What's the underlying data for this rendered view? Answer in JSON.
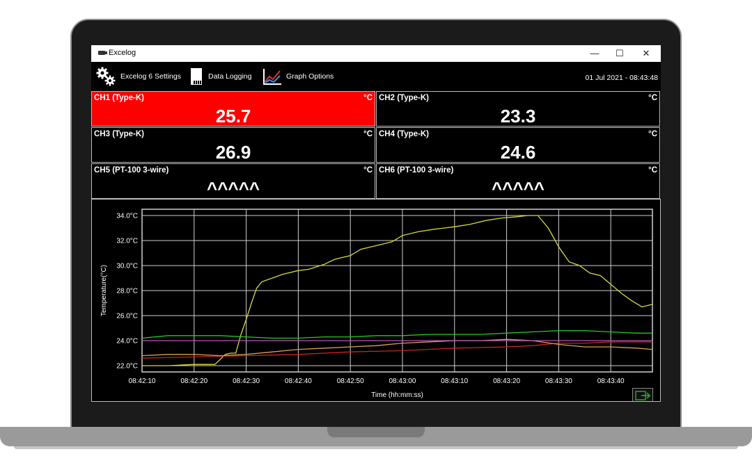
{
  "window": {
    "title": "Excelog",
    "controls": {
      "minimize": "—",
      "maximize": "☐",
      "close": "✕"
    }
  },
  "toolbar": {
    "settings_label": "Excelog 6 Settings",
    "logging_label": "Data Logging",
    "graph_label": "Graph Options",
    "datetime": "01 Jul 2021 - 08:43:48"
  },
  "icons": {
    "settings": "gears-icon",
    "logging": "sd-card-icon",
    "graph": "line-graph-icon"
  },
  "channels": [
    {
      "name": "CH1 (Type-K)",
      "unit": "°C",
      "value": "25.7",
      "alarm": true
    },
    {
      "name": "CH2 (Type-K)",
      "unit": "°C",
      "value": "23.3",
      "alarm": false
    },
    {
      "name": "CH3 (Type-K)",
      "unit": "°C",
      "value": "26.9",
      "alarm": false
    },
    {
      "name": "CH4 (Type-K)",
      "unit": "°C",
      "value": "24.6",
      "alarm": false
    },
    {
      "name": "CH5 (PT-100 3-wire)",
      "unit": "°C",
      "value": "^^^^^",
      "alarm": false
    },
    {
      "name": "CH6 (PT-100 3-wire)",
      "unit": "°C",
      "value": "^^^^^",
      "alarm": false
    }
  ],
  "colors": {
    "alarm": "#ff0000",
    "panel_bg": "#000000",
    "border": "#bdbdbd"
  },
  "chart_data": {
    "type": "line",
    "xlabel": "Time (hh:mm:ss)",
    "ylabel": "Temperature(°C)",
    "ylim": [
      21.5,
      34.5
    ],
    "xlim": [
      0,
      98
    ],
    "x_ticks": [
      {
        "t": 0,
        "label": "08:42:10"
      },
      {
        "t": 10,
        "label": "08:42:20"
      },
      {
        "t": 20,
        "label": "08:42:30"
      },
      {
        "t": 30,
        "label": "08:42:40"
      },
      {
        "t": 40,
        "label": "08:42:50"
      },
      {
        "t": 50,
        "label": "08:43:00"
      },
      {
        "t": 60,
        "label": "08:43:10"
      },
      {
        "t": 70,
        "label": "08:43:20"
      },
      {
        "t": 80,
        "label": "08:43:30"
      },
      {
        "t": 90,
        "label": "08:43:40"
      }
    ],
    "y_ticks": [
      {
        "v": 22,
        "label": "22.0°C"
      },
      {
        "v": 24,
        "label": "24.0°C"
      },
      {
        "v": 26,
        "label": "26.0°C"
      },
      {
        "v": 28,
        "label": "28.0°C"
      },
      {
        "v": 30,
        "label": "30.0°C"
      },
      {
        "v": 32,
        "label": "32.0°C"
      },
      {
        "v": 34,
        "label": "34.0°C"
      }
    ],
    "grid": true,
    "series": [
      {
        "color": "#d9d93a",
        "points": [
          [
            0,
            22.0
          ],
          [
            5,
            22.0
          ],
          [
            10,
            22.1
          ],
          [
            14,
            22.1
          ],
          [
            16,
            22.9
          ],
          [
            17,
            23.0
          ],
          [
            18,
            23.0
          ],
          [
            19,
            24.5
          ],
          [
            20,
            25.7
          ],
          [
            21,
            27.0
          ],
          [
            22,
            28.2
          ],
          [
            23,
            28.7
          ],
          [
            25,
            29.0
          ],
          [
            27,
            29.3
          ],
          [
            30,
            29.6
          ],
          [
            32,
            29.7
          ],
          [
            35,
            30.1
          ],
          [
            37,
            30.5
          ],
          [
            40,
            30.8
          ],
          [
            42,
            31.3
          ],
          [
            45,
            31.6
          ],
          [
            48,
            31.9
          ],
          [
            50,
            32.4
          ],
          [
            53,
            32.7
          ],
          [
            56,
            32.9
          ],
          [
            60,
            33.1
          ],
          [
            63,
            33.3
          ],
          [
            66,
            33.6
          ],
          [
            69,
            33.8
          ],
          [
            72,
            33.9
          ],
          [
            74,
            34.0
          ],
          [
            76,
            34.0
          ],
          [
            78,
            33.0
          ],
          [
            80,
            31.5
          ],
          [
            82,
            30.3
          ],
          [
            84,
            30.0
          ],
          [
            86,
            29.4
          ],
          [
            88,
            29.2
          ],
          [
            90,
            28.5
          ],
          [
            92,
            27.8
          ],
          [
            94,
            27.2
          ],
          [
            96,
            26.7
          ],
          [
            98,
            26.9
          ]
        ]
      },
      {
        "color": "#22cc22",
        "points": [
          [
            0,
            24.2
          ],
          [
            5,
            24.4
          ],
          [
            10,
            24.4
          ],
          [
            15,
            24.4
          ],
          [
            20,
            24.3
          ],
          [
            25,
            24.2
          ],
          [
            30,
            24.2
          ],
          [
            35,
            24.3
          ],
          [
            40,
            24.3
          ],
          [
            45,
            24.4
          ],
          [
            50,
            24.4
          ],
          [
            55,
            24.5
          ],
          [
            60,
            24.5
          ],
          [
            65,
            24.5
          ],
          [
            70,
            24.6
          ],
          [
            75,
            24.7
          ],
          [
            80,
            24.8
          ],
          [
            85,
            24.8
          ],
          [
            90,
            24.7
          ],
          [
            95,
            24.6
          ],
          [
            98,
            24.6
          ]
        ]
      },
      {
        "color": "#cc2222",
        "points": [
          [
            0,
            22.6
          ],
          [
            10,
            22.7
          ],
          [
            20,
            22.8
          ],
          [
            30,
            22.9
          ],
          [
            40,
            23.1
          ],
          [
            50,
            23.2
          ],
          [
            60,
            23.4
          ],
          [
            70,
            23.5
          ],
          [
            75,
            23.6
          ],
          [
            80,
            23.8
          ],
          [
            85,
            23.8
          ],
          [
            90,
            23.9
          ],
          [
            98,
            23.9
          ]
        ]
      },
      {
        "color": "#d8a050",
        "points": [
          [
            0,
            22.8
          ],
          [
            5,
            22.9
          ],
          [
            10,
            22.9
          ],
          [
            15,
            22.8
          ],
          [
            20,
            22.9
          ],
          [
            25,
            23.1
          ],
          [
            30,
            23.3
          ],
          [
            35,
            23.4
          ],
          [
            40,
            23.5
          ],
          [
            45,
            23.6
          ],
          [
            50,
            23.8
          ],
          [
            55,
            23.9
          ],
          [
            60,
            24.0
          ],
          [
            65,
            24.0
          ],
          [
            70,
            24.1
          ],
          [
            75,
            24.0
          ],
          [
            80,
            23.7
          ],
          [
            85,
            23.5
          ],
          [
            90,
            23.5
          ],
          [
            95,
            23.4
          ],
          [
            98,
            23.3
          ]
        ]
      },
      {
        "color": "#bb55bb",
        "points": [
          [
            0,
            24.0
          ],
          [
            98,
            24.0
          ]
        ]
      }
    ]
  }
}
